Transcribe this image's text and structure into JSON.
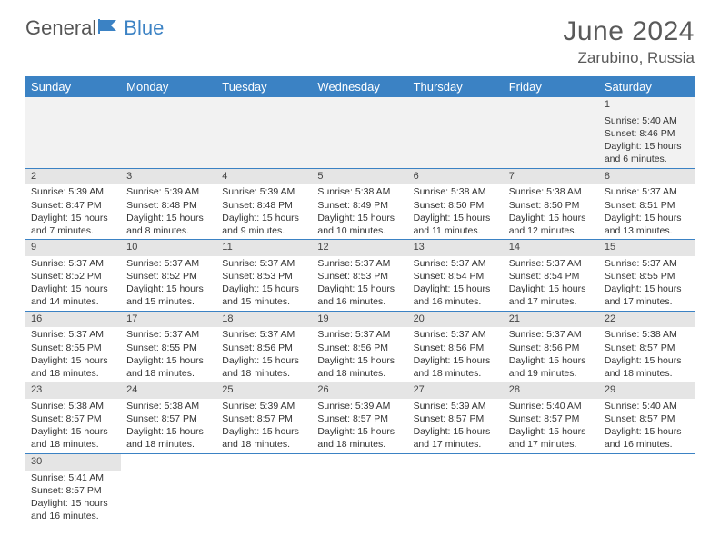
{
  "logo": {
    "part1": "General",
    "part2": "Blue"
  },
  "title": "June 2024",
  "location": "Zarubino, Russia",
  "day_headers": [
    "Sunday",
    "Monday",
    "Tuesday",
    "Wednesday",
    "Thursday",
    "Friday",
    "Saturday"
  ],
  "colors": {
    "header_bg": "#3b82c4",
    "header_text": "#ffffff",
    "daybar_bg": "#e5e5e5",
    "cell_border": "#3b82c4",
    "text": "#333333",
    "title_text": "#5a5a5a",
    "logo_blue": "#3b82c4"
  },
  "weeks": [
    [
      null,
      null,
      null,
      null,
      null,
      null,
      {
        "n": "1",
        "sr": "Sunrise: 5:40 AM",
        "ss": "Sunset: 8:46 PM",
        "d1": "Daylight: 15 hours",
        "d2": "and 6 minutes."
      }
    ],
    [
      {
        "n": "2",
        "sr": "Sunrise: 5:39 AM",
        "ss": "Sunset: 8:47 PM",
        "d1": "Daylight: 15 hours",
        "d2": "and 7 minutes."
      },
      {
        "n": "3",
        "sr": "Sunrise: 5:39 AM",
        "ss": "Sunset: 8:48 PM",
        "d1": "Daylight: 15 hours",
        "d2": "and 8 minutes."
      },
      {
        "n": "4",
        "sr": "Sunrise: 5:39 AM",
        "ss": "Sunset: 8:48 PM",
        "d1": "Daylight: 15 hours",
        "d2": "and 9 minutes."
      },
      {
        "n": "5",
        "sr": "Sunrise: 5:38 AM",
        "ss": "Sunset: 8:49 PM",
        "d1": "Daylight: 15 hours",
        "d2": "and 10 minutes."
      },
      {
        "n": "6",
        "sr": "Sunrise: 5:38 AM",
        "ss": "Sunset: 8:50 PM",
        "d1": "Daylight: 15 hours",
        "d2": "and 11 minutes."
      },
      {
        "n": "7",
        "sr": "Sunrise: 5:38 AM",
        "ss": "Sunset: 8:50 PM",
        "d1": "Daylight: 15 hours",
        "d2": "and 12 minutes."
      },
      {
        "n": "8",
        "sr": "Sunrise: 5:37 AM",
        "ss": "Sunset: 8:51 PM",
        "d1": "Daylight: 15 hours",
        "d2": "and 13 minutes."
      }
    ],
    [
      {
        "n": "9",
        "sr": "Sunrise: 5:37 AM",
        "ss": "Sunset: 8:52 PM",
        "d1": "Daylight: 15 hours",
        "d2": "and 14 minutes."
      },
      {
        "n": "10",
        "sr": "Sunrise: 5:37 AM",
        "ss": "Sunset: 8:52 PM",
        "d1": "Daylight: 15 hours",
        "d2": "and 15 minutes."
      },
      {
        "n": "11",
        "sr": "Sunrise: 5:37 AM",
        "ss": "Sunset: 8:53 PM",
        "d1": "Daylight: 15 hours",
        "d2": "and 15 minutes."
      },
      {
        "n": "12",
        "sr": "Sunrise: 5:37 AM",
        "ss": "Sunset: 8:53 PM",
        "d1": "Daylight: 15 hours",
        "d2": "and 16 minutes."
      },
      {
        "n": "13",
        "sr": "Sunrise: 5:37 AM",
        "ss": "Sunset: 8:54 PM",
        "d1": "Daylight: 15 hours",
        "d2": "and 16 minutes."
      },
      {
        "n": "14",
        "sr": "Sunrise: 5:37 AM",
        "ss": "Sunset: 8:54 PM",
        "d1": "Daylight: 15 hours",
        "d2": "and 17 minutes."
      },
      {
        "n": "15",
        "sr": "Sunrise: 5:37 AM",
        "ss": "Sunset: 8:55 PM",
        "d1": "Daylight: 15 hours",
        "d2": "and 17 minutes."
      }
    ],
    [
      {
        "n": "16",
        "sr": "Sunrise: 5:37 AM",
        "ss": "Sunset: 8:55 PM",
        "d1": "Daylight: 15 hours",
        "d2": "and 18 minutes."
      },
      {
        "n": "17",
        "sr": "Sunrise: 5:37 AM",
        "ss": "Sunset: 8:55 PM",
        "d1": "Daylight: 15 hours",
        "d2": "and 18 minutes."
      },
      {
        "n": "18",
        "sr": "Sunrise: 5:37 AM",
        "ss": "Sunset: 8:56 PM",
        "d1": "Daylight: 15 hours",
        "d2": "and 18 minutes."
      },
      {
        "n": "19",
        "sr": "Sunrise: 5:37 AM",
        "ss": "Sunset: 8:56 PM",
        "d1": "Daylight: 15 hours",
        "d2": "and 18 minutes."
      },
      {
        "n": "20",
        "sr": "Sunrise: 5:37 AM",
        "ss": "Sunset: 8:56 PM",
        "d1": "Daylight: 15 hours",
        "d2": "and 18 minutes."
      },
      {
        "n": "21",
        "sr": "Sunrise: 5:37 AM",
        "ss": "Sunset: 8:56 PM",
        "d1": "Daylight: 15 hours",
        "d2": "and 19 minutes."
      },
      {
        "n": "22",
        "sr": "Sunrise: 5:38 AM",
        "ss": "Sunset: 8:57 PM",
        "d1": "Daylight: 15 hours",
        "d2": "and 18 minutes."
      }
    ],
    [
      {
        "n": "23",
        "sr": "Sunrise: 5:38 AM",
        "ss": "Sunset: 8:57 PM",
        "d1": "Daylight: 15 hours",
        "d2": "and 18 minutes."
      },
      {
        "n": "24",
        "sr": "Sunrise: 5:38 AM",
        "ss": "Sunset: 8:57 PM",
        "d1": "Daylight: 15 hours",
        "d2": "and 18 minutes."
      },
      {
        "n": "25",
        "sr": "Sunrise: 5:39 AM",
        "ss": "Sunset: 8:57 PM",
        "d1": "Daylight: 15 hours",
        "d2": "and 18 minutes."
      },
      {
        "n": "26",
        "sr": "Sunrise: 5:39 AM",
        "ss": "Sunset: 8:57 PM",
        "d1": "Daylight: 15 hours",
        "d2": "and 18 minutes."
      },
      {
        "n": "27",
        "sr": "Sunrise: 5:39 AM",
        "ss": "Sunset: 8:57 PM",
        "d1": "Daylight: 15 hours",
        "d2": "and 17 minutes."
      },
      {
        "n": "28",
        "sr": "Sunrise: 5:40 AM",
        "ss": "Sunset: 8:57 PM",
        "d1": "Daylight: 15 hours",
        "d2": "and 17 minutes."
      },
      {
        "n": "29",
        "sr": "Sunrise: 5:40 AM",
        "ss": "Sunset: 8:57 PM",
        "d1": "Daylight: 15 hours",
        "d2": "and 16 minutes."
      }
    ],
    [
      {
        "n": "30",
        "sr": "Sunrise: 5:41 AM",
        "ss": "Sunset: 8:57 PM",
        "d1": "Daylight: 15 hours",
        "d2": "and 16 minutes."
      },
      null,
      null,
      null,
      null,
      null,
      null
    ]
  ]
}
